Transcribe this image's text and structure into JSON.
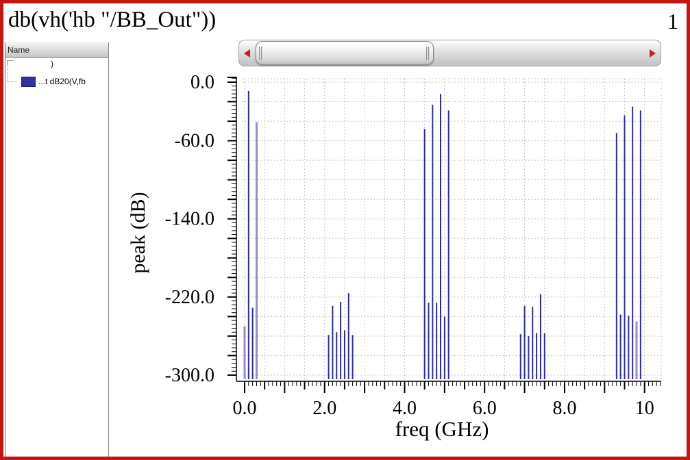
{
  "window": {
    "title": "db(vh('hb \"/BB_Out\"))",
    "page_number": "1",
    "border_color": "#c41414"
  },
  "legend_panel": {
    "header": "Name",
    "rows": [
      {
        "label": ")"
      },
      {
        "label": "...t dB20(V,fb",
        "swatch_color": "#32329b"
      }
    ]
  },
  "scrollbar": {
    "left_arrow_icon": "red-left-triangle",
    "right_arrow_icon": "red-right-triangle",
    "arrow_color": "#c22020"
  },
  "chart_data": {
    "type": "bar",
    "subtype": "stem-spectrum",
    "title": "db(vh('hb \"/BB_Out\"))",
    "xlabel": "freq (GHz)",
    "ylabel": "peak (dB)",
    "xlim": [
      0,
      10.4
    ],
    "ylim": [
      -306,
      4
    ],
    "grid": "dotted",
    "x_ticks": [
      "0.0",
      "2.0",
      "4.0",
      "6.0",
      "8.0",
      "10"
    ],
    "x_tick_values": [
      0,
      2,
      4,
      6,
      8,
      10
    ],
    "y_ticks": [
      "0.0",
      "-60.0",
      "-140.0",
      "-220.0",
      "-300.0"
    ],
    "y_tick_values": [
      0,
      -60,
      -140,
      -220,
      -300
    ],
    "legend_position": "left-panel",
    "stem_color": "#2d2d96",
    "stem_light_color": "#9191c8",
    "grid_color": "#b4b4b4",
    "series": [
      {
        "name": "...t dB20(V,fb",
        "color": "#2d2d96",
        "points": [
          {
            "freq": 0.0,
            "db": -250,
            "light": true
          },
          {
            "freq": 0.1,
            "db": -9
          },
          {
            "freq": 0.2,
            "db": -231
          },
          {
            "freq": 0.3,
            "db": -41,
            "light": true
          },
          {
            "freq": 2.1,
            "db": -259
          },
          {
            "freq": 2.2,
            "db": -229
          },
          {
            "freq": 2.3,
            "db": -256
          },
          {
            "freq": 2.4,
            "db": -225
          },
          {
            "freq": 2.5,
            "db": -254
          },
          {
            "freq": 2.6,
            "db": -216
          },
          {
            "freq": 2.7,
            "db": -259
          },
          {
            "freq": 4.5,
            "db": -48
          },
          {
            "freq": 4.6,
            "db": -226
          },
          {
            "freq": 4.7,
            "db": -23
          },
          {
            "freq": 4.8,
            "db": -226
          },
          {
            "freq": 4.9,
            "db": -12
          },
          {
            "freq": 5.0,
            "db": -240
          },
          {
            "freq": 5.1,
            "db": -29
          },
          {
            "freq": 6.9,
            "db": -258
          },
          {
            "freq": 7.0,
            "db": -229
          },
          {
            "freq": 7.1,
            "db": -260
          },
          {
            "freq": 7.2,
            "db": -230
          },
          {
            "freq": 7.3,
            "db": -257
          },
          {
            "freq": 7.4,
            "db": -217
          },
          {
            "freq": 7.5,
            "db": -257
          },
          {
            "freq": 9.3,
            "db": -52
          },
          {
            "freq": 9.4,
            "db": -238
          },
          {
            "freq": 9.5,
            "db": -34
          },
          {
            "freq": 9.6,
            "db": -239
          },
          {
            "freq": 9.7,
            "db": -25
          },
          {
            "freq": 9.8,
            "db": -245,
            "light": true
          },
          {
            "freq": 9.9,
            "db": -29
          }
        ]
      }
    ]
  }
}
